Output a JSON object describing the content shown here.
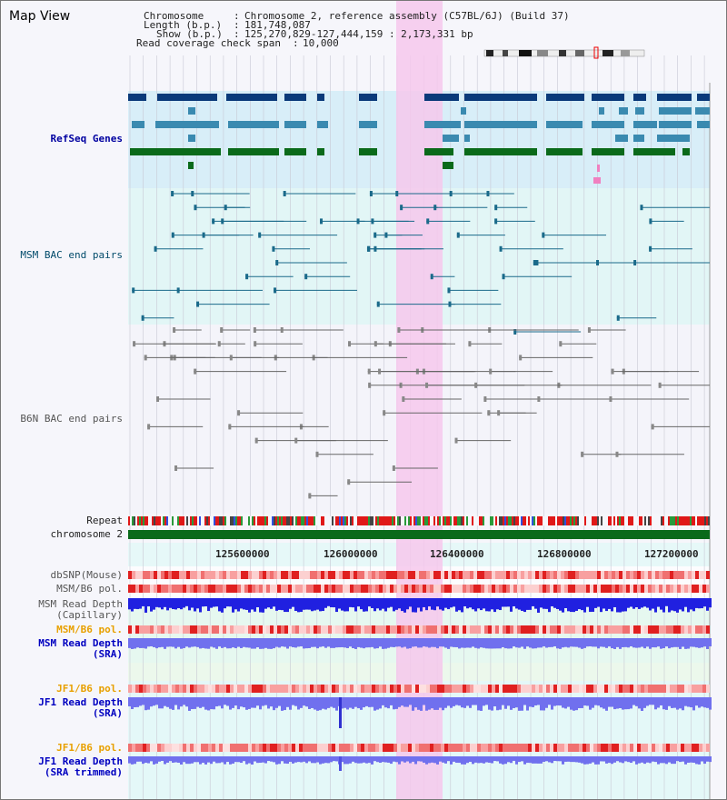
{
  "app": {
    "title": "Map View"
  },
  "info": {
    "chromosome_label": "Chromosome",
    "chromosome_value": "Chromosome 2, reference assembly (C57BL/6J) (Build 37)",
    "length_label": "Length (b.p.)",
    "length_value": "181,748,087",
    "show_label": "Show (b.p.)",
    "show_value": "125,270,829-127,444,159 : 2,173,331 bp",
    "span_label": "Read coverage check span",
    "span_value": "10,000"
  },
  "tracks": {
    "refseq": "RefSeq Genes",
    "msm_bac": "MSM BAC end pairs",
    "b6n_bac": "B6N BAC end pairs",
    "repeat": "Repeat",
    "chrom": "chromosome 2",
    "dbsnp": "dbSNP(Mouse)",
    "msm_pol1": "MSM/B6 pol.",
    "msm_cap": "MSM Read Depth\n(Capillary)",
    "msm_pol2": "MSM/B6 pol.",
    "msm_sra": "MSM Read Depth\n(SRA)",
    "jf1_pol1": "JF1/B6 pol.",
    "jf1_sra": "JF1 Read Depth\n(SRA)",
    "jf1_pol2": "JF1/B6 pol.",
    "jf1_sra_trim": "JF1 Read Depth\n(SRA trimmed)"
  },
  "axis": {
    "ticks": [
      "125600000",
      "126000000",
      "126400000",
      "126800000",
      "127200000"
    ]
  },
  "colors": {
    "refseq_dark": "#0a3a7a",
    "refseq_mid": "#3a8ab0",
    "refseq_green": "#0a6a1a",
    "highlight": "#f6c8ec",
    "chrom_green": "#0a6a1a",
    "depth_blue": "#2020e0",
    "depth_light": "#7070ee"
  }
}
